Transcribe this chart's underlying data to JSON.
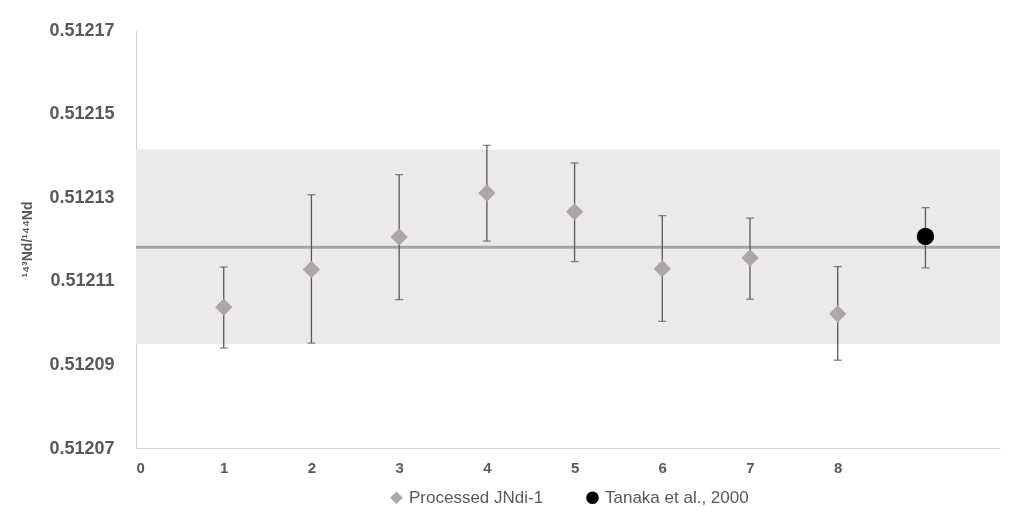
{
  "chart_data": {
    "type": "scatter",
    "ylabel": "¹⁴³Nd/¹⁴⁴Nd",
    "xlim": [
      0,
      9.85
    ],
    "xticks": [
      0,
      1,
      2,
      3,
      4,
      5,
      6,
      7,
      8
    ],
    "ylim": [
      0.51207,
      0.51217
    ],
    "yticks": [
      0.51207,
      0.51209,
      0.51211,
      0.51213,
      0.51215,
      0.51217
    ],
    "grid": false,
    "legend": "bottom",
    "bands": [
      {
        "axis": "y",
        "from": 0.5120949,
        "to": 0.5121414,
        "color": "#ebe9e9"
      }
    ],
    "ref_lines": [
      {
        "axis": "y",
        "value": 0.512118,
        "color": "#a6a6a6"
      }
    ],
    "series": [
      {
        "name": "Processed JNdi-1",
        "color": "#aaa7a6",
        "marker": "diamond",
        "x": [
          1,
          2,
          3,
          4,
          5,
          6,
          7,
          8
        ],
        "values": [
          0.5121037,
          0.5121127,
          0.5121205,
          0.512131,
          0.5121265,
          0.5121129,
          0.5121155,
          0.5121021
        ],
        "errors": [
          [
            0.5120939,
            0.5121133
          ],
          [
            0.5120951,
            0.5121306
          ],
          [
            0.5121055,
            0.5121354
          ],
          [
            0.5121195,
            0.5121424
          ],
          [
            0.5121146,
            0.5121382
          ],
          [
            0.5121003,
            0.5121256
          ],
          [
            0.5121056,
            0.512125
          ],
          [
            0.512091,
            0.5121134
          ]
        ]
      },
      {
        "name": "Tanaka et al., 2000",
        "color": "#000000",
        "marker": "circle",
        "x": [
          9
        ],
        "values": [
          0.5121206
        ],
        "errors": [
          [
            0.5121131,
            0.5121275
          ]
        ]
      }
    ]
  }
}
